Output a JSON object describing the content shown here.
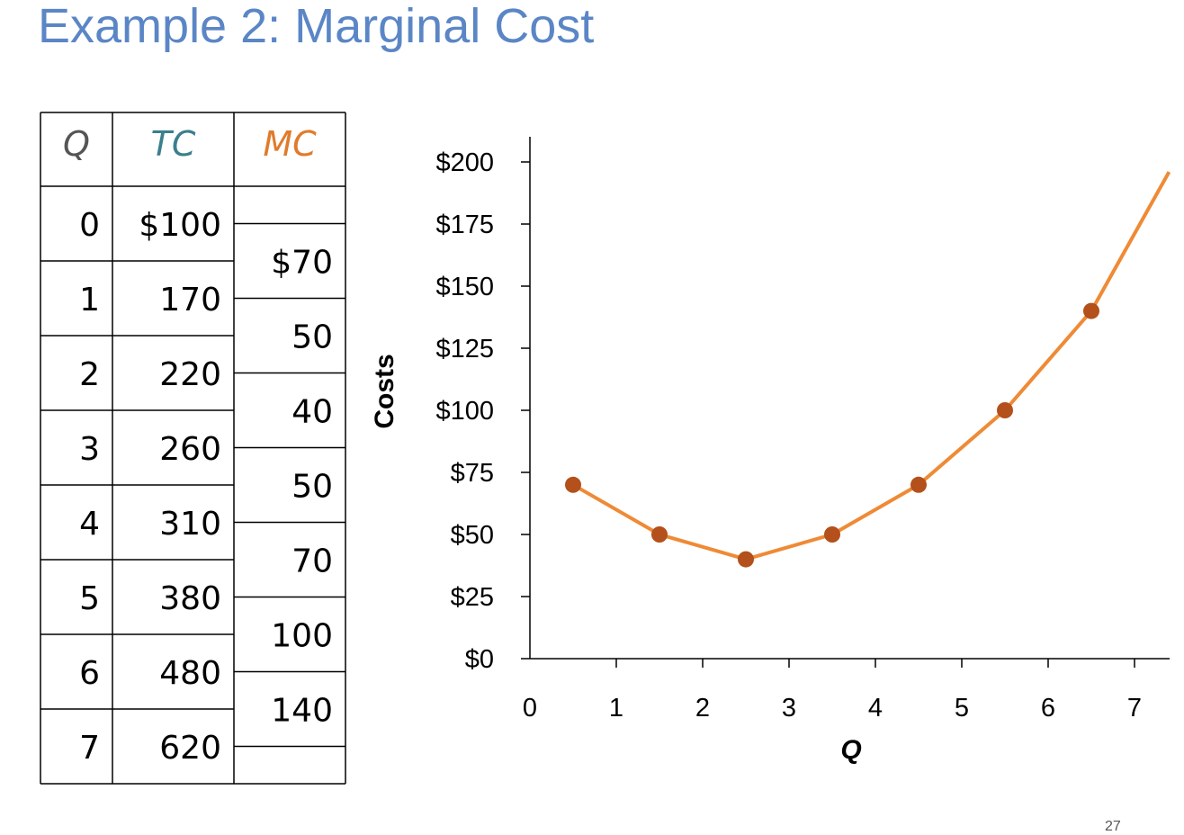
{
  "title": "Example 2: Marginal Cost",
  "page_number": "27",
  "table": {
    "headers": {
      "q": "Q",
      "tc": "TC",
      "mc": "MC"
    },
    "header_colors": {
      "q": "#555555",
      "tc": "#3a7f8c",
      "mc": "#e07b2c"
    },
    "q": [
      "0",
      "1",
      "2",
      "3",
      "4",
      "5",
      "6",
      "7"
    ],
    "tc": [
      "$100",
      "170",
      "220",
      "260",
      "310",
      "380",
      "480",
      "620"
    ],
    "mc": [
      "$70",
      "50",
      "40",
      "50",
      "70",
      "100",
      "140"
    ]
  },
  "chart_data": {
    "type": "line",
    "title": "",
    "xlabel": "Q",
    "ylabel": "Costs",
    "xlim": [
      0,
      7
    ],
    "ylim": [
      0,
      200
    ],
    "x_ticks": [
      "0",
      "1",
      "2",
      "3",
      "4",
      "5",
      "6",
      "7"
    ],
    "y_ticks": [
      "$0",
      "$25",
      "$50",
      "$75",
      "$100",
      "$125",
      "$150",
      "$175",
      "$200"
    ],
    "y_tick_values": [
      0,
      25,
      50,
      75,
      100,
      125,
      150,
      175,
      200
    ],
    "line_color": "#ef8a35",
    "marker_color": "#b3501b",
    "series": [
      {
        "x": [
          0.5,
          1.5,
          2.5,
          3.5,
          4.5,
          5.5,
          6.5
        ],
        "values": [
          70,
          50,
          40,
          50,
          70,
          100,
          140
        ]
      }
    ],
    "line_extension_end": {
      "x": 7.4,
      "y": 196
    }
  }
}
